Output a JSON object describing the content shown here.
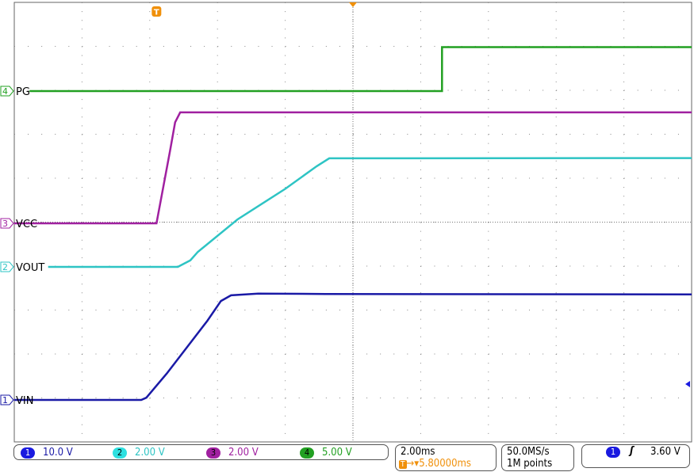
{
  "chart_data": {
    "type": "line",
    "title": "",
    "xlabel": "",
    "ylabel": "",
    "x_unit": "ms",
    "xlim": [
      -4.2,
      15.8
    ],
    "grid": true,
    "divisions": {
      "horizontal": 10,
      "vertical": 10
    },
    "series": [
      {
        "name": "VIN",
        "channel": "1",
        "color": "#1a1aa6",
        "scale_v_per_div": 10.0,
        "points": [
          [
            -4.2,
            0
          ],
          [
            -0.45,
            0
          ],
          [
            -0.3,
            0.5
          ],
          [
            0.3,
            6
          ],
          [
            1.5,
            18
          ],
          [
            1.9,
            22.5
          ],
          [
            2.2,
            23.8
          ],
          [
            3.0,
            24.2
          ],
          [
            5.0,
            24.1
          ],
          [
            15.8,
            24.0
          ]
        ]
      },
      {
        "name": "VOUT",
        "channel": "2",
        "color": "#2ec4c4",
        "scale_v_per_div": 2.0,
        "points": [
          [
            -3.2,
            0
          ],
          [
            0.63,
            0
          ],
          [
            1.0,
            0.3
          ],
          [
            1.22,
            0.68
          ],
          [
            2.39,
            2.16
          ],
          [
            3.8,
            3.55
          ],
          [
            4.73,
            4.58
          ],
          [
            5.1,
            4.94
          ],
          [
            15.8,
            4.95
          ]
        ]
      },
      {
        "name": "VCC",
        "channel": "3",
        "color": "#a020a0",
        "scale_v_per_div": 2.0,
        "points": [
          [
            -4.2,
            0
          ],
          [
            0,
            0
          ],
          [
            0.4,
            3.3
          ],
          [
            0.55,
            4.6
          ],
          [
            0.7,
            5.05
          ],
          [
            15.8,
            5.05
          ]
        ]
      },
      {
        "name": "PG",
        "channel": "4",
        "color": "#22a022",
        "scale_v_per_div": 5.0,
        "points": [
          [
            -3.75,
            0
          ],
          [
            8.43,
            0
          ],
          [
            8.43,
            5
          ],
          [
            15.8,
            5
          ]
        ]
      }
    ]
  },
  "trigger_marker": "T",
  "status": {
    "channels": [
      {
        "num": "1",
        "scale": "10.0 V",
        "color": "#1a1aa6",
        "badge": "#1a1ae0"
      },
      {
        "num": "2",
        "scale": "2.00 V",
        "color": "#2ec4c4",
        "badge": "#2ee0e0"
      },
      {
        "num": "3",
        "scale": "2.00 V",
        "color": "#a020a0",
        "badge": "#a020a0"
      },
      {
        "num": "4",
        "scale": "5.00 V",
        "color": "#22a022",
        "badge": "#22a022"
      }
    ],
    "timebase": "2.00ms",
    "delay": "5.80000ms",
    "sample_rate": "50.0MS/s",
    "record_length": "1M points",
    "trigger": {
      "channel": "1",
      "slope_icon": "rising-edge-icon",
      "level": "3.60 V"
    },
    "accent": "#f0900a"
  }
}
